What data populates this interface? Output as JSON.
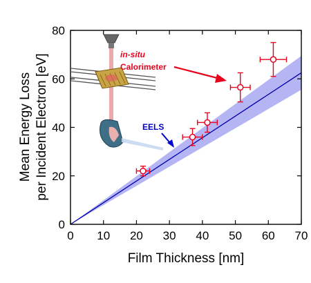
{
  "chart_data": {
    "type": "scatter",
    "xlabel": "Film Thickness [nm]",
    "ylabel_line1": "Mean Energy Loss",
    "ylabel_line2": "per Incident Electron [eV]",
    "xlim": [
      0,
      70
    ],
    "ylim": [
      0,
      80
    ],
    "xticks": [
      0,
      10,
      20,
      30,
      40,
      50,
      60,
      70
    ],
    "yticks": [
      0,
      20,
      40,
      60,
      80
    ],
    "grid": false,
    "points": [
      {
        "x": 22,
        "y": 22,
        "xerr": 2,
        "yerr": 2
      },
      {
        "x": 37,
        "y": 36,
        "xerr": 3,
        "yerr": 3.5
      },
      {
        "x": 41.5,
        "y": 42,
        "xerr": 3,
        "yerr": 4
      },
      {
        "x": 51.5,
        "y": 56.5,
        "xerr": 3,
        "yerr": 6
      },
      {
        "x": 61.5,
        "y": 68,
        "xerr": 4,
        "yerr": 7
      }
    ],
    "fit_line": {
      "x0": 0,
      "y0": 0,
      "x1": 70,
      "y1": 62.5
    },
    "fit_band": {
      "x": 70,
      "upper": 69.5,
      "lower": 55.5
    },
    "annotations": [
      {
        "text_italic": "in-situ",
        "text": "Calorimeter",
        "color": "#e8001c"
      },
      {
        "text": "EELS",
        "color": "#0000cc"
      }
    ],
    "colors": {
      "points": "#e8001c",
      "fit_line": "#0000aa",
      "fit_band": "#9c9cf0"
    }
  }
}
